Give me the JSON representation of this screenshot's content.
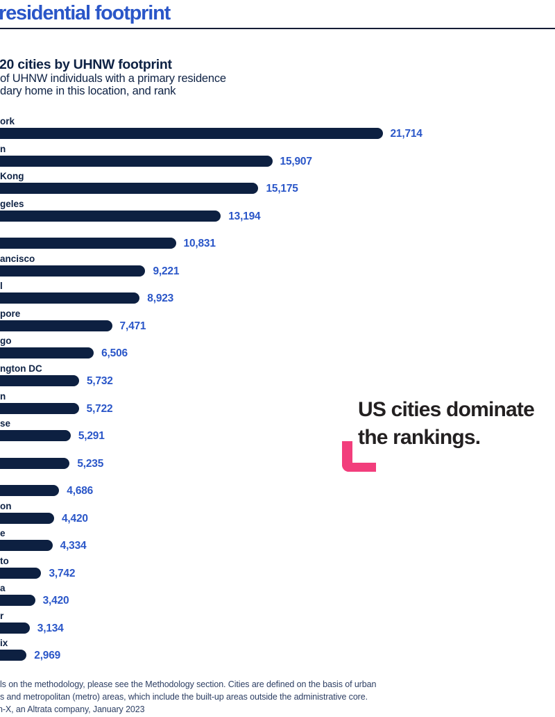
{
  "header": {
    "headline": "residential footprint"
  },
  "chart": {
    "title": "20 cities by UHNW footprint",
    "subtitle_line1": "of UHNW individuals with a primary residence",
    "subtitle_line2": "dary home in this location, and rank"
  },
  "chart_data": {
    "type": "bar",
    "orientation": "horizontal",
    "title": "20 cities by UHNW footprint",
    "subtitle": "of UHNW individuals with a primary residence / dary home in this location, and rank",
    "categories": [
      "ork",
      "n",
      "Kong",
      "geles",
      "",
      "ancisco",
      "l",
      "pore",
      "go",
      "ngton DC",
      "n",
      "se",
      "",
      "",
      "on",
      "e",
      "to",
      "a",
      "r",
      "ix"
    ],
    "values": [
      21714,
      15907,
      15175,
      13194,
      10831,
      9221,
      8923,
      7471,
      6506,
      5732,
      5722,
      5291,
      5235,
      4686,
      4420,
      4334,
      3742,
      3420,
      3134,
      2969
    ],
    "value_labels": [
      "21,714",
      "15,907",
      "15,175",
      "13,194",
      "10,831",
      "9,221",
      "8,923",
      "7,471",
      "6,506",
      "5,732",
      "5,722",
      "5,291",
      "5,235",
      "4,686",
      "4,420",
      "4,334",
      "3,742",
      "3,420",
      "3,134",
      "2,969"
    ],
    "bar_color": "#0D2041",
    "value_label_color": "#2A56C8",
    "grid": false,
    "legend": false,
    "note_labels": "city labels truncated by left crop of screenshot"
  },
  "callout": {
    "line1": "US cities dominate",
    "line2": "the rankings.",
    "bracket_color": "#F23E7C"
  },
  "footer": {
    "line1": "ls on the methodology, please see the Methodology section. Cities are defined on the basis of urban",
    "line2": "s and metropolitan (metro) areas, which include the built-up areas outside the administrative core.",
    "source": "h-X, an Altrata company, January 2023"
  },
  "colors": {
    "accent_blue": "#2A56C8",
    "navy": "#0E2244",
    "bar_navy": "#0D2041",
    "pink": "#F23E7C",
    "callout_black": "#232021",
    "footnote_navy": "#2C3E63"
  }
}
